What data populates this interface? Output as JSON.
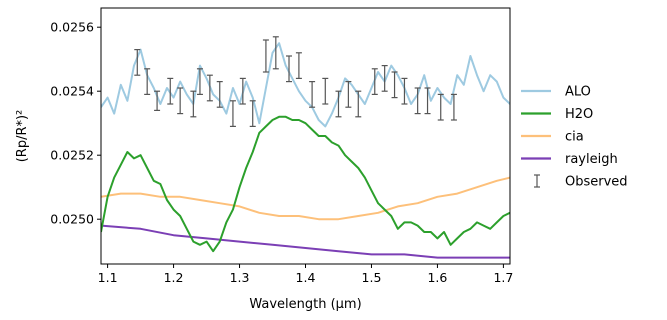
{
  "chart_data": {
    "type": "line",
    "title": "",
    "xlabel": "Wavelength (μm)",
    "ylabel": "(Rp/R*)²",
    "xlim": [
      1.09,
      1.71
    ],
    "ylim": [
      0.02486,
      0.02566
    ],
    "x_ticks": [
      1.1,
      1.2,
      1.3,
      1.4,
      1.5,
      1.6,
      1.7
    ],
    "x_tick_labels": [
      "1.1",
      "1.2",
      "1.3",
      "1.4",
      "1.5",
      "1.6",
      "1.7"
    ],
    "y_ticks": [
      0.025,
      0.0252,
      0.0254,
      0.0256
    ],
    "y_tick_labels": [
      "0.0250",
      "0.0252",
      "0.0254",
      "0.0256"
    ],
    "grid": false,
    "legend_position": "outside-right",
    "series": [
      {
        "name": "ALO",
        "color": "#9ecae1",
        "x": [
          1.09,
          1.1,
          1.11,
          1.12,
          1.13,
          1.14,
          1.15,
          1.16,
          1.17,
          1.18,
          1.19,
          1.2,
          1.21,
          1.22,
          1.23,
          1.24,
          1.25,
          1.26,
          1.27,
          1.28,
          1.29,
          1.3,
          1.31,
          1.32,
          1.33,
          1.34,
          1.35,
          1.36,
          1.37,
          1.38,
          1.39,
          1.4,
          1.41,
          1.42,
          1.43,
          1.44,
          1.45,
          1.46,
          1.47,
          1.48,
          1.49,
          1.5,
          1.51,
          1.52,
          1.53,
          1.54,
          1.55,
          1.56,
          1.57,
          1.58,
          1.59,
          1.6,
          1.61,
          1.62,
          1.63,
          1.64,
          1.65,
          1.66,
          1.67,
          1.68,
          1.69,
          1.7,
          1.71
        ],
        "y": [
          0.02535,
          0.02538,
          0.02533,
          0.02542,
          0.02537,
          0.02548,
          0.02553,
          0.02545,
          0.02541,
          0.02536,
          0.02541,
          0.02538,
          0.02543,
          0.02539,
          0.02536,
          0.02548,
          0.02544,
          0.02539,
          0.02537,
          0.02533,
          0.02541,
          0.02536,
          0.02543,
          0.02538,
          0.0253,
          0.02541,
          0.02552,
          0.02555,
          0.02548,
          0.02544,
          0.0254,
          0.02537,
          0.02535,
          0.02531,
          0.02529,
          0.02533,
          0.02538,
          0.02544,
          0.02542,
          0.02539,
          0.02536,
          0.02541,
          0.02546,
          0.02543,
          0.02548,
          0.02545,
          0.02541,
          0.02536,
          0.02539,
          0.02545,
          0.02537,
          0.02541,
          0.02538,
          0.02536,
          0.02545,
          0.02542,
          0.02551,
          0.02545,
          0.0254,
          0.02545,
          0.02543,
          0.02538,
          0.02536
        ]
      },
      {
        "name": "H2O",
        "color": "#2ca02c",
        "x": [
          1.09,
          1.1,
          1.11,
          1.12,
          1.13,
          1.14,
          1.15,
          1.16,
          1.17,
          1.18,
          1.19,
          1.2,
          1.21,
          1.22,
          1.23,
          1.24,
          1.25,
          1.26,
          1.27,
          1.28,
          1.29,
          1.3,
          1.31,
          1.32,
          1.33,
          1.34,
          1.35,
          1.36,
          1.37,
          1.38,
          1.39,
          1.4,
          1.41,
          1.42,
          1.43,
          1.44,
          1.45,
          1.46,
          1.47,
          1.48,
          1.49,
          1.5,
          1.51,
          1.52,
          1.53,
          1.54,
          1.55,
          1.56,
          1.57,
          1.58,
          1.59,
          1.6,
          1.61,
          1.62,
          1.63,
          1.64,
          1.65,
          1.66,
          1.67,
          1.68,
          1.69,
          1.7,
          1.71
        ],
        "y": [
          0.02496,
          0.02507,
          0.02513,
          0.02517,
          0.02521,
          0.02519,
          0.0252,
          0.02516,
          0.02512,
          0.02511,
          0.02506,
          0.02503,
          0.02501,
          0.02497,
          0.02493,
          0.02492,
          0.02493,
          0.0249,
          0.02493,
          0.02499,
          0.02503,
          0.0251,
          0.02516,
          0.02521,
          0.02527,
          0.02529,
          0.02531,
          0.02532,
          0.02532,
          0.02531,
          0.02531,
          0.0253,
          0.02528,
          0.02526,
          0.02526,
          0.02524,
          0.02523,
          0.0252,
          0.02518,
          0.02516,
          0.02513,
          0.02509,
          0.02505,
          0.02503,
          0.02501,
          0.02497,
          0.02499,
          0.02499,
          0.02498,
          0.02496,
          0.02496,
          0.02494,
          0.02496,
          0.02492,
          0.02494,
          0.02496,
          0.02497,
          0.02499,
          0.02498,
          0.02497,
          0.02499,
          0.02501,
          0.02502
        ]
      },
      {
        "name": "cia",
        "color": "#fdc07a",
        "x": [
          1.09,
          1.12,
          1.15,
          1.18,
          1.21,
          1.24,
          1.27,
          1.3,
          1.33,
          1.36,
          1.39,
          1.42,
          1.45,
          1.48,
          1.51,
          1.54,
          1.57,
          1.6,
          1.63,
          1.66,
          1.69,
          1.71
        ],
        "y": [
          0.02507,
          0.02508,
          0.02508,
          0.02507,
          0.02507,
          0.02506,
          0.02505,
          0.02504,
          0.02502,
          0.02501,
          0.02501,
          0.025,
          0.025,
          0.02501,
          0.02502,
          0.02504,
          0.02505,
          0.02507,
          0.02508,
          0.0251,
          0.02512,
          0.02513
        ]
      },
      {
        "name": "rayleigh",
        "color": "#7b3fb5",
        "x": [
          1.09,
          1.15,
          1.2,
          1.25,
          1.3,
          1.35,
          1.4,
          1.45,
          1.5,
          1.55,
          1.6,
          1.65,
          1.71
        ],
        "y": [
          0.02498,
          0.02497,
          0.02495,
          0.02494,
          0.02493,
          0.02492,
          0.02491,
          0.0249,
          0.02489,
          0.02489,
          0.02488,
          0.02488,
          0.02488
        ]
      }
    ],
    "observed": {
      "name": "Observed",
      "color": "#555555",
      "x": [
        1.145,
        1.16,
        1.175,
        1.195,
        1.21,
        1.23,
        1.24,
        1.255,
        1.27,
        1.29,
        1.305,
        1.32,
        1.34,
        1.355,
        1.375,
        1.39,
        1.41,
        1.43,
        1.45,
        1.465,
        1.48,
        1.505,
        1.52,
        1.535,
        1.55,
        1.57,
        1.585,
        1.605,
        1.625
      ],
      "y": [
        0.02549,
        0.02543,
        0.02537,
        0.0254,
        0.02537,
        0.02536,
        0.02543,
        0.02541,
        0.02539,
        0.02533,
        0.0254,
        0.02533,
        0.02551,
        0.02552,
        0.02547,
        0.02548,
        0.02539,
        0.0254,
        0.02536,
        0.02539,
        0.02536,
        0.02543,
        0.02544,
        0.02542,
        0.0254,
        0.02537,
        0.02537,
        0.02535,
        0.02535
      ],
      "err": [
        4e-05,
        4e-05,
        3e-05,
        4e-05,
        4e-05,
        4e-05,
        4e-05,
        4e-05,
        4e-05,
        4e-05,
        4e-05,
        4e-05,
        5e-05,
        5e-05,
        4e-05,
        4e-05,
        4e-05,
        4e-05,
        4e-05,
        4e-05,
        4e-05,
        4e-05,
        4e-05,
        4e-05,
        4e-05,
        4e-05,
        4e-05,
        4e-05,
        4e-05
      ]
    }
  }
}
